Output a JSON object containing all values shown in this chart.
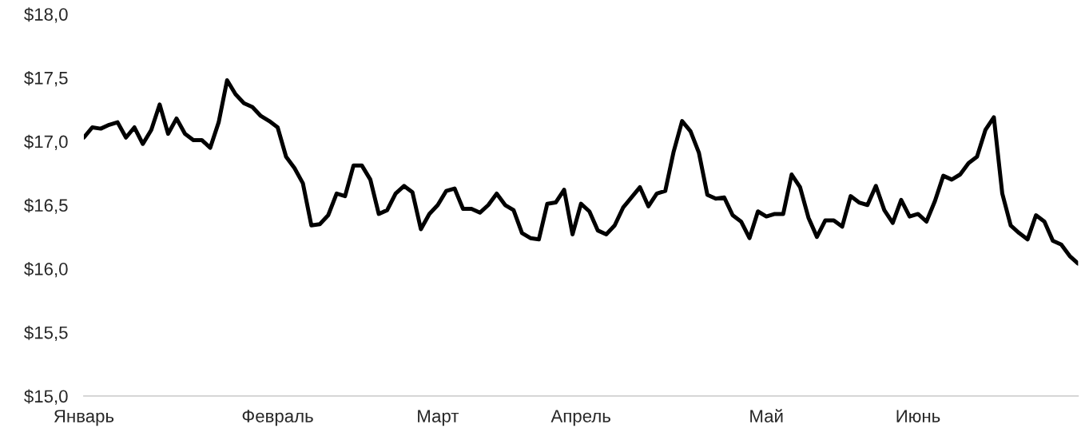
{
  "chart_data": {
    "type": "line",
    "categories": [
      "Январь",
      null,
      null,
      null,
      null,
      null,
      null,
      null,
      null,
      null,
      null,
      null,
      null,
      null,
      null,
      null,
      null,
      null,
      null,
      null,
      null,
      null,
      null,
      "Февраль",
      null,
      null,
      null,
      null,
      null,
      null,
      null,
      null,
      null,
      null,
      null,
      null,
      null,
      null,
      null,
      null,
      null,
      null,
      "Март",
      null,
      null,
      null,
      null,
      null,
      null,
      null,
      null,
      null,
      null,
      null,
      null,
      null,
      null,
      null,
      null,
      "Апрель",
      null,
      null,
      null,
      null,
      null,
      null,
      null,
      null,
      null,
      null,
      null,
      null,
      null,
      null,
      null,
      null,
      null,
      null,
      null,
      null,
      null,
      "Май",
      null,
      null,
      null,
      null,
      null,
      null,
      null,
      null,
      null,
      null,
      null,
      null,
      null,
      null,
      null,
      null,
      null,
      "Июнь",
      null,
      null,
      null,
      null,
      null,
      null,
      null,
      null,
      null,
      null,
      null,
      null,
      null,
      null,
      null,
      null,
      null,
      null,
      null
    ],
    "series": [
      {
        "color": "#000000",
        "values": [
          17.03,
          17.11,
          17.1,
          17.13,
          17.15,
          17.03,
          17.11,
          16.98,
          17.09,
          17.29,
          17.06,
          17.18,
          17.06,
          17.01,
          17.01,
          16.95,
          17.15,
          17.48,
          17.37,
          17.3,
          17.27,
          17.2,
          17.16,
          17.11,
          16.88,
          16.79,
          16.67,
          16.34,
          16.35,
          16.42,
          16.59,
          16.57,
          16.81,
          16.81,
          16.7,
          16.43,
          16.46,
          16.59,
          16.65,
          16.6,
          16.31,
          16.43,
          16.5,
          16.61,
          16.63,
          16.47,
          16.47,
          16.44,
          16.5,
          16.59,
          16.5,
          16.46,
          16.28,
          16.24,
          16.23,
          16.51,
          16.52,
          16.62,
          16.27,
          16.51,
          16.45,
          16.3,
          16.27,
          16.34,
          16.48,
          16.56,
          16.64,
          16.49,
          16.59,
          16.61,
          16.92,
          17.16,
          17.08,
          16.91,
          16.58,
          16.55,
          16.56,
          16.42,
          16.37,
          16.24,
          16.45,
          16.41,
          16.43,
          16.43,
          16.74,
          16.64,
          16.4,
          16.25,
          16.38,
          16.38,
          16.33,
          16.57,
          16.52,
          16.5,
          16.65,
          16.46,
          16.36,
          16.54,
          16.41,
          16.43,
          16.37,
          16.53,
          16.73,
          16.7,
          16.74,
          16.83,
          16.88,
          17.09,
          17.19,
          16.59,
          16.34,
          16.28,
          16.23,
          16.42,
          16.37,
          16.22,
          16.19,
          16.1,
          16.04
        ]
      }
    ],
    "ylim": [
      15,
      18
    ],
    "yticks": [
      {
        "value": 15,
        "label": "$15,0"
      },
      {
        "value": 15.5,
        "label": "$15,5"
      },
      {
        "value": 16,
        "label": "$16,0"
      },
      {
        "value": 16.5,
        "label": "$16,5"
      },
      {
        "value": 17,
        "label": "$17,0"
      },
      {
        "value": 17.5,
        "label": "$17,5"
      },
      {
        "value": 18,
        "label": "$18,0"
      }
    ],
    "grid": false,
    "marker": "none",
    "line_style": "solid"
  }
}
